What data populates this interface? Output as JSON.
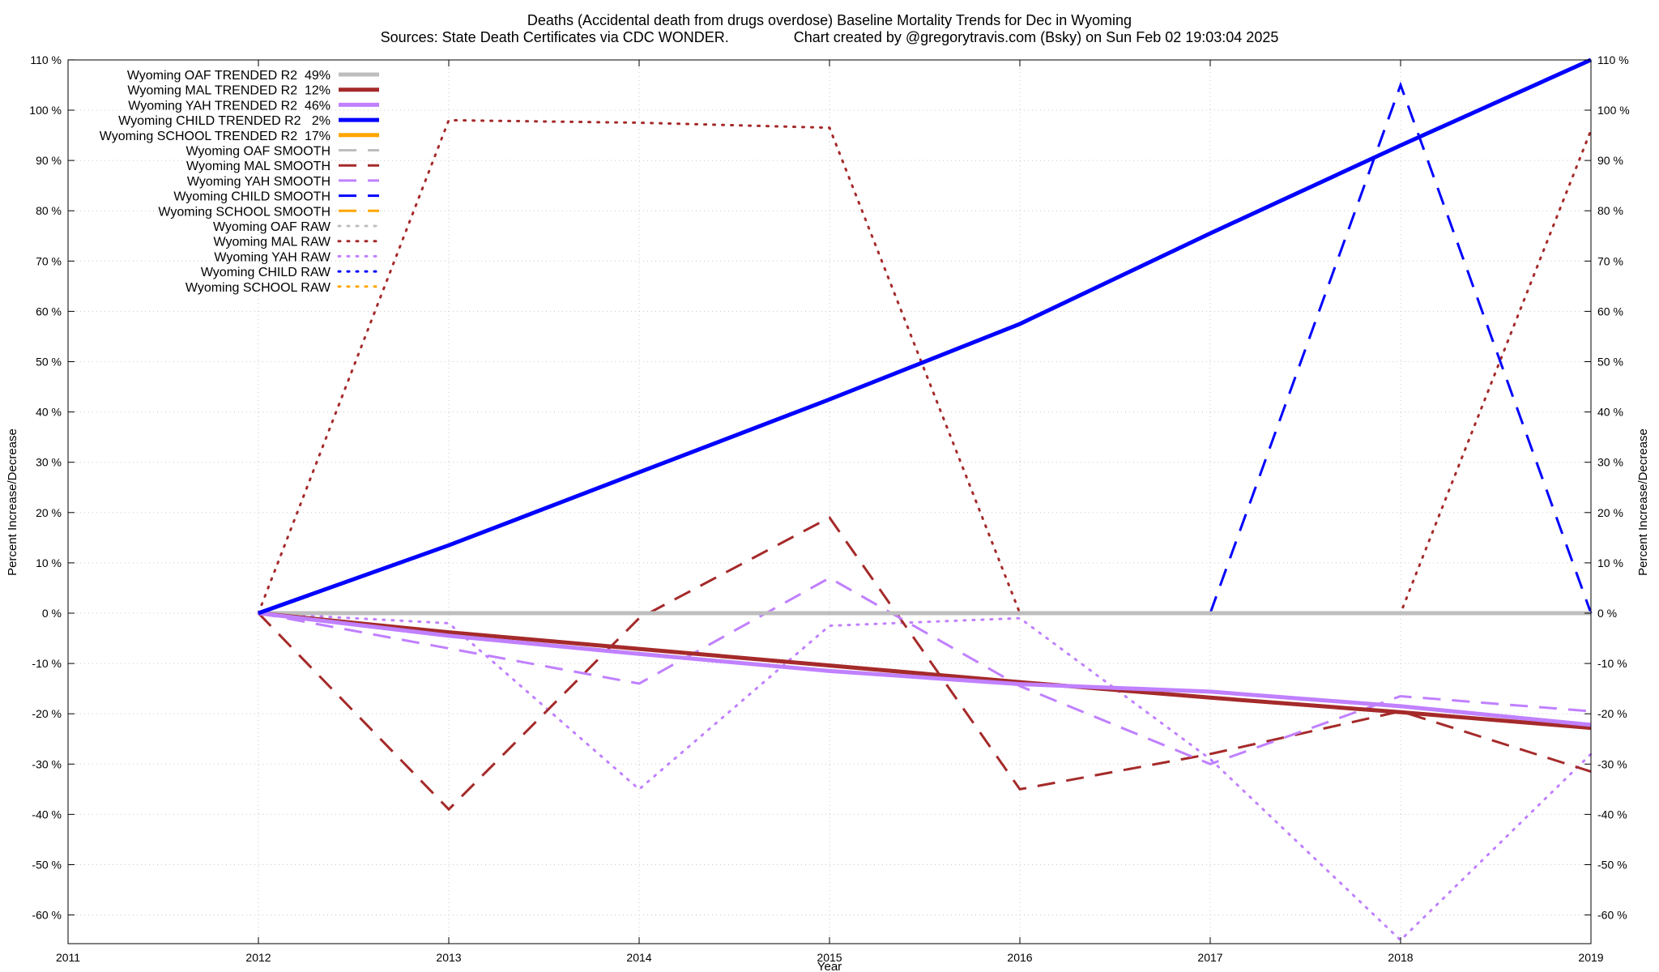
{
  "chart_data": {
    "type": "line",
    "title": "Deaths (Accidental death from drugs overdose)  Baseline Mortality Trends for Dec in Wyoming",
    "subtitle": "Sources: State Death Certificates via CDC WONDER.                Chart created by @gregorytravis.com (Bsky) on Sun Feb 02 19:03:04 2025",
    "xlabel": "Year",
    "ylabel": "Percent Increase/Decrease",
    "y2label": "Percent Increase/Decrease",
    "xlim": [
      2011,
      2019
    ],
    "ylim": [
      -65,
      110
    ],
    "x_ticks": [
      "2011",
      "2012",
      "2013",
      "2014",
      "2015",
      "2016",
      "2017",
      "2018",
      "2019"
    ],
    "y_ticks": [
      "110 %",
      "100 %",
      "90 %",
      "80 %",
      "70 %",
      "60 %",
      "50 %",
      "40 %",
      "30 %",
      "20 %",
      "10 %",
      "0 %",
      "-10 %",
      "-20 %",
      "-30 %",
      "-40 %",
      "-50 %",
      "-60 %"
    ],
    "grid": true,
    "legend_position": "top-left",
    "series": [
      {
        "name": "Wyoming OAF TRENDED R2  49%",
        "style": "solid",
        "color": "#bebebe",
        "x": [
          2012,
          2019
        ],
        "values": [
          0,
          0
        ]
      },
      {
        "name": "Wyoming MAL TRENDED R2  12%",
        "style": "solid",
        "color": "#a52a2a",
        "x": [
          2012,
          2013,
          2014,
          2015,
          2016,
          2017,
          2018,
          2019
        ],
        "values": [
          0,
          -3.8,
          -7.1,
          -10.4,
          -13.7,
          -16.8,
          -19.7,
          -22.8
        ]
      },
      {
        "name": "Wyoming YAH TRENDED R2  46%",
        "style": "solid",
        "color": "#c080ff",
        "x": [
          2012,
          2013,
          2014,
          2015,
          2016,
          2017,
          2018,
          2019
        ],
        "values": [
          0,
          -4.5,
          -8.1,
          -11.5,
          -14.1,
          -15.6,
          -18.5,
          -22.2
        ]
      },
      {
        "name": "Wyoming CHILD TRENDED R2   2%",
        "style": "solid",
        "color": "#0000ff",
        "x": [
          2012,
          2013,
          2014,
          2015,
          2016,
          2017,
          2018,
          2019
        ],
        "values": [
          0,
          13.5,
          28,
          42.5,
          57.5,
          75.5,
          93,
          110
        ]
      },
      {
        "name": "Wyoming SCHOOL TRENDED R2  17%",
        "style": "solid",
        "color": "#ffa500",
        "x": [],
        "values": []
      },
      {
        "name": "Wyoming OAF SMOOTH",
        "style": "dash",
        "color": "#bebebe",
        "x": [],
        "values": []
      },
      {
        "name": "Wyoming MAL SMOOTH",
        "style": "dash",
        "color": "#a52a2a",
        "x": [
          2012,
          2013,
          2014,
          2015,
          2016,
          2017,
          2018,
          2019
        ],
        "values": [
          0,
          -39,
          -1,
          19,
          -35,
          -28,
          -19.5,
          -31.5
        ]
      },
      {
        "name": "Wyoming YAH SMOOTH",
        "style": "dash",
        "color": "#c080ff",
        "x": [
          2012,
          2013,
          2014,
          2015,
          2016,
          2017,
          2018,
          2019
        ],
        "values": [
          0,
          -7,
          -14,
          7,
          -14.5,
          -30,
          -16.5,
          -19.5
        ]
      },
      {
        "name": "Wyoming CHILD SMOOTH",
        "style": "dash",
        "color": "#0000ff",
        "x": [
          2017,
          2018,
          2019
        ],
        "values": [
          0,
          105,
          0
        ]
      },
      {
        "name": "Wyoming SCHOOL SMOOTH",
        "style": "dash",
        "color": "#ffa500",
        "x": [],
        "values": []
      },
      {
        "name": "Wyoming OAF RAW",
        "style": "dot",
        "color": "#bebebe",
        "x": [],
        "values": []
      },
      {
        "name": "Wyoming MAL RAW",
        "style": "dot",
        "color": "#a52a2a",
        "x": [
          2012,
          2013,
          2014,
          2015,
          2016,
          2017,
          2018,
          2019
        ],
        "values": [
          0,
          98,
          97.5,
          96.5,
          0,
          0,
          0,
          96
        ]
      },
      {
        "name": "Wyoming YAH RAW",
        "style": "dot",
        "color": "#c080ff",
        "x": [
          2012,
          2013,
          2014,
          2015,
          2016,
          2017,
          2018,
          2019
        ],
        "values": [
          0,
          -2,
          -35,
          -2.5,
          -1,
          -29,
          -65,
          -28
        ]
      },
      {
        "name": "Wyoming CHILD RAW",
        "style": "dot",
        "color": "#0000ff",
        "x": [],
        "values": []
      },
      {
        "name": "Wyoming SCHOOL RAW",
        "style": "dot",
        "color": "#ffa500",
        "x": [],
        "values": []
      }
    ]
  }
}
